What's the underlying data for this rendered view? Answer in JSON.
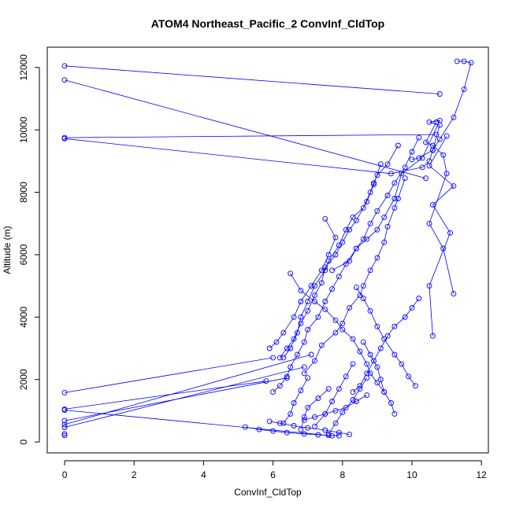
{
  "chart_data": {
    "type": "line",
    "title": "ATOM4 Northeast_Pacific_2 ConvInf_CldTop",
    "xlabel": "ConvInf_CldTop",
    "ylabel": "Altitude (m)",
    "xlim": [
      -0.5,
      12.2
    ],
    "ylim": [
      -350,
      12650
    ],
    "x_ticks": [
      0,
      2,
      4,
      6,
      8,
      10,
      12
    ],
    "y_ticks": [
      0,
      2000,
      4000,
      6000,
      8000,
      10000,
      12000
    ],
    "x_tick_labels": [
      "0",
      "2",
      "4",
      "6",
      "8",
      "10",
      "12"
    ],
    "y_tick_labels": [
      "0",
      "2000",
      "4000",
      "6000",
      "8000",
      "10000",
      "12000"
    ],
    "grid": false,
    "legend": "none",
    "line_color": "#0000ff",
    "marker": "open-circle",
    "series": [
      {
        "x": [
          0,
          10.8
        ],
        "y": [
          12050,
          11150
        ]
      },
      {
        "x": [
          0,
          10.4
        ],
        "y": [
          11600,
          8450
        ]
      },
      {
        "x": [
          0,
          10.7
        ],
        "y": [
          9750,
          9850
        ]
      },
      {
        "x": [
          0,
          9.4,
          10.3,
          10.5,
          10.6,
          10.8,
          11.2,
          11.5,
          11.7,
          11.5,
          11.3
        ],
        "y": [
          9720,
          8600,
          8800,
          9000,
          9350,
          9700,
          10400,
          11300,
          12150,
          12200,
          12200
        ]
      },
      {
        "x": [
          11.0,
          10.5,
          11.2,
          10.6,
          11.1,
          10.5,
          10.6
        ],
        "y": [
          9800,
          8850,
          8200,
          7600,
          6700,
          5000,
          3400
        ]
      },
      {
        "x": [
          10.0,
          10.2,
          10.6,
          10.8,
          10.5,
          10.8,
          10.3,
          9.7,
          9.5,
          9.2,
          9.0,
          8.7,
          8.4,
          8.2,
          7.7
        ],
        "y": [
          9050,
          9100,
          9350,
          10150,
          10250,
          10300,
          9100,
          8600,
          7800,
          7200,
          6800,
          6500,
          6200,
          5800,
          5500
        ]
      },
      {
        "x": [
          10.7,
          10.4,
          10.6,
          10.9,
          11.0,
          10.5,
          10.9,
          11.2
        ],
        "y": [
          10250,
          9600,
          9500,
          9200,
          8600,
          7000,
          6200,
          4750
        ]
      },
      {
        "x": [
          9.6,
          9.3,
          9.0,
          8.9,
          8.8,
          8.6,
          8.3,
          8.1,
          7.9,
          7.6,
          7.5,
          7.2,
          7.0,
          6.8,
          6.7,
          6.5,
          6.3
        ],
        "y": [
          9500,
          8900,
          8550,
          8300,
          8000,
          7500,
          7200,
          6800,
          6300,
          5800,
          5500,
          5000,
          4500,
          4000,
          3500,
          3000,
          2700
        ]
      },
      {
        "x": [
          9.1,
          8.9,
          8.7,
          8.4,
          8.2,
          8.0,
          7.8,
          7.5,
          7.4,
          7.2,
          7.0,
          6.8,
          6.6,
          6.4,
          6.2
        ],
        "y": [
          8900,
          8250,
          7700,
          7100,
          6800,
          6400,
          6000,
          5600,
          5100,
          4700,
          4200,
          3800,
          3300,
          3000,
          2700
        ]
      },
      {
        "x": [
          9.8,
          9.6,
          9.5,
          9.3,
          9.2,
          9.0,
          8.8,
          8.6,
          8.5,
          8.2,
          8.0,
          7.8,
          7.4,
          7.2,
          6.9
        ],
        "y": [
          8450,
          7800,
          7500,
          6900,
          6400,
          5900,
          5500,
          5000,
          4700,
          4300,
          3800,
          3500,
          3100,
          2600,
          2200
        ]
      },
      {
        "x": [
          7.5,
          7.8,
          7.6,
          7.4,
          7.1,
          6.8,
          6.6,
          6.3,
          6.1,
          5.9
        ],
        "y": [
          7150,
          6550,
          6000,
          5500,
          5000,
          4500,
          4000,
          3500,
          3200,
          3000
        ]
      },
      {
        "x": [
          10.2,
          10.0,
          9.8,
          9.5,
          9.3,
          9.0,
          8.8,
          8.6,
          8.4,
          8.1,
          7.9,
          7.7,
          7.5,
          7.3,
          7.0,
          6.9,
          6.7,
          6.5,
          6.4,
          6.2,
          6.0
        ],
        "y": [
          9750,
          9300,
          8800,
          8300,
          7900,
          7400,
          7000,
          6500,
          6200,
          5700,
          5300,
          4900,
          4500,
          4000,
          3600,
          3200,
          2800,
          2400,
          2100,
          1800,
          1600
        ]
      },
      {
        "x": [
          6.5,
          6.8,
          7.2,
          7.5,
          7.8,
          8.0,
          8.3,
          8.5,
          8.7,
          8.8,
          9.0,
          9.2
        ],
        "y": [
          5400,
          4850,
          4500,
          4250,
          3900,
          3600,
          3300,
          2900,
          2500,
          2200,
          1900,
          1600
        ]
      },
      {
        "x": [
          10.2,
          10.0,
          9.8,
          9.5,
          9.3,
          9.1,
          8.9,
          8.7,
          8.5,
          8.3
        ],
        "y": [
          4600,
          4300,
          4000,
          3700,
          3400,
          3000,
          2600,
          2200,
          1800,
          1600
        ]
      },
      {
        "x": [
          8.4,
          8.6,
          8.8,
          9.0,
          9.2,
          9.5,
          9.7,
          9.9,
          10.1
        ],
        "y": [
          4950,
          4600,
          4200,
          3700,
          3300,
          2800,
          2500,
          2100,
          1800
        ]
      },
      {
        "x": [
          0,
          6.0
        ],
        "y": [
          1580,
          2700
        ]
      },
      {
        "x": [
          0,
          5.8
        ],
        "y": [
          1050,
          1950
        ]
      },
      {
        "x": [
          0,
          6.4
        ],
        "y": [
          680,
          2050
        ]
      },
      {
        "x": [
          0,
          7.1
        ],
        "y": [
          560,
          2800
        ]
      },
      {
        "x": [
          0,
          6.9
        ],
        "y": [
          470,
          2400
        ]
      },
      {
        "x": [
          0,
          7.7
        ],
        "y": [
          1020,
          200
        ]
      },
      {
        "x": [
          0,
          0
        ],
        "y": [
          260,
          210
        ]
      },
      {
        "x": [
          5.2,
          5.6,
          6.0,
          6.4,
          6.9,
          7.3,
          7.6,
          7.9
        ],
        "y": [
          480,
          400,
          350,
          300,
          260,
          230,
          210,
          200
        ]
      },
      {
        "x": [
          5.9,
          6.2,
          6.6,
          7.0,
          7.5,
          7.9,
          8.2
        ],
        "y": [
          660,
          600,
          520,
          450,
          380,
          300,
          240
        ]
      },
      {
        "x": [
          6.9,
          7.2,
          7.5,
          7.8,
          8.1,
          8.4,
          8.7
        ],
        "y": [
          700,
          800,
          900,
          1000,
          1100,
          1300,
          1500
        ]
      },
      {
        "x": [
          7.0,
          6.8,
          6.6,
          6.5,
          6.3
        ],
        "y": [
          2050,
          1650,
          1250,
          900,
          600
        ]
      },
      {
        "x": [
          7.6,
          7.3,
          7.0,
          6.9,
          6.8
        ],
        "y": [
          1700,
          1400,
          1100,
          800,
          400
        ]
      },
      {
        "x": [
          8.3,
          8.1,
          7.9,
          7.7,
          7.5,
          7.2
        ],
        "y": [
          2500,
          2100,
          1700,
          1300,
          900,
          500
        ]
      },
      {
        "x": [
          8.7,
          8.5,
          8.3,
          8.0,
          7.8,
          7.6
        ],
        "y": [
          2050,
          1700,
          1350,
          950,
          600,
          250
        ]
      },
      {
        "x": [
          8.6,
          8.8,
          9.0,
          9.1,
          9.2,
          9.4,
          9.5
        ],
        "y": [
          3200,
          2800,
          2400,
          2000,
          1600,
          1250,
          900
        ]
      }
    ]
  }
}
